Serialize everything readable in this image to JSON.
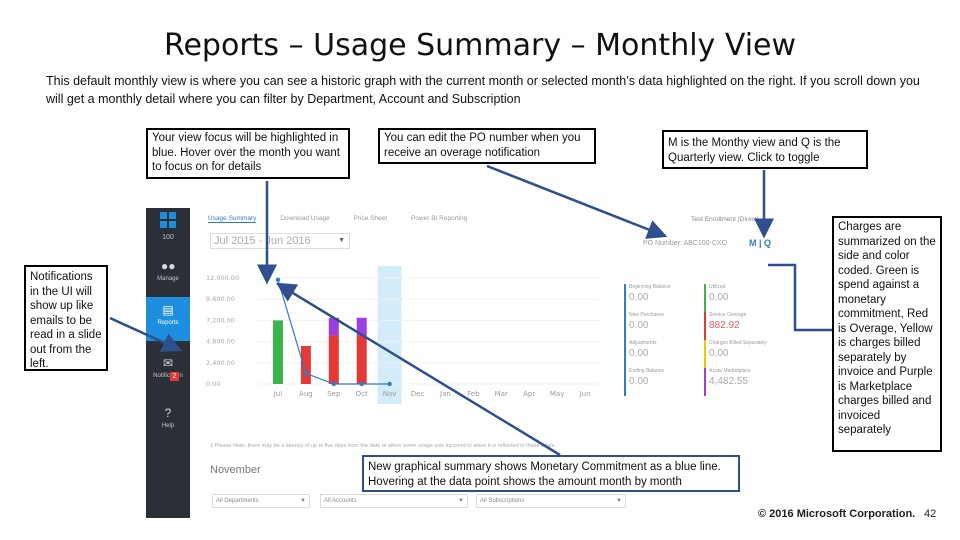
{
  "slide": {
    "title": "Reports – Usage Summary – Monthly View",
    "intro": "This default monthly view is where you can see a historic graph with the current month or selected month’s data highlighted on the right. If you scroll down you will get a monthly detail where you can filter by Department, Account and Subscription",
    "copyright": "© 2016 Microsoft Corporation.",
    "page_number": "42"
  },
  "callouts": {
    "view_focus": "Your view focus will be highlighted in blue. Hover over the month you want to focus on for details",
    "po_number": "You can edit the PO number when you receive an overage notification",
    "m_q": "M is the Monthy view and Q is the Quarterly view. Click to toggle",
    "notifications": "Notifications in the UI will show up like emails to be read in a slide out from the left.",
    "charges": "Charges are summarized on the side and color coded. Green is spend against a monetary commitment, Red is Overage, Yellow is charges billed separately by invoice and Purple is Marketplace charges billed and invoiced separately",
    "graphical_summary": "New graphical summary shows Monetary Commitment as a blue line. Hovering at the data point shows the amount month by month"
  },
  "app": {
    "nav": {
      "count": "100",
      "items": [
        {
          "label": "Manage",
          "icon": "people-icon"
        },
        {
          "label": "Reports",
          "icon": "report-icon"
        },
        {
          "label": "Notification",
          "icon": "mail-icon",
          "badge": "2"
        },
        {
          "label": "Help",
          "icon": "help-icon"
        }
      ]
    },
    "tabs": [
      "Usage Summary",
      "Download Usage",
      "Price Sheet",
      "Power BI Reporting"
    ],
    "enrollment": "Test Enrollment (Direct)",
    "period": "Jul 2015 - Jun 2016",
    "po_number": "PO Number: ABC100-CXO",
    "mq_toggle": "M | Q",
    "summary": {
      "beginning_balance": {
        "label": "Beginning Balance",
        "value": "0.00"
      },
      "new_purchases": {
        "label": "New Purchases",
        "value": "0.00"
      },
      "adjustments": {
        "label": "Adjustments",
        "value": "0.00"
      },
      "ending_balance": {
        "label": "Ending Balance",
        "value": "0.00"
      },
      "utilized": {
        "label": "Utilized",
        "value": "0.00"
      },
      "service_overage": {
        "label": "Service Overage",
        "value": "882.92"
      },
      "charges_billed_separately": {
        "label": "Charges Billed Separately",
        "value": "0.00"
      },
      "azure_marketplace": {
        "label": "Azure Marketplace",
        "value": "4,482.55"
      }
    },
    "note": "‡ Please Note: there may be a latency of up to five days from the date or when some usage was incurred to when it is reflected in these totals.",
    "month_label": "November",
    "filters": [
      "All Departments",
      "All Accounts",
      "All Subscriptions"
    ]
  },
  "chart_data": {
    "type": "bar",
    "categories": [
      "Jul",
      "Aug",
      "Sep",
      "Oct",
      "Nov",
      "Dec",
      "Jan",
      "Feb",
      "Mar",
      "Apr",
      "May",
      "Jun"
    ],
    "y_ticks": [
      "12,000.00",
      "9,600.00",
      "7,200.00",
      "4,800.00",
      "2,400.00",
      "0.00"
    ],
    "ylim": [
      0,
      12000
    ],
    "highlighted_category": "Nov",
    "series": [
      {
        "color": "#3cb44b",
        "values": [
          7200,
          0,
          0,
          0,
          0,
          0,
          0,
          0,
          0,
          0,
          0,
          0
        ]
      },
      {
        "color": "#e53935",
        "values": [
          0,
          4300,
          5500,
          5500,
          0,
          0,
          0,
          0,
          0,
          0,
          0,
          0
        ]
      },
      {
        "color": "#9c3fe0",
        "values": [
          0,
          0,
          2000,
          2000,
          0,
          0,
          0,
          0,
          0,
          0,
          0,
          0
        ]
      },
      {
        "color": "#2e7bcf",
        "type": "line",
        "values": [
          11800,
          1200,
          0,
          0,
          0,
          null,
          null,
          null,
          null,
          null,
          null,
          null
        ]
      }
    ]
  }
}
